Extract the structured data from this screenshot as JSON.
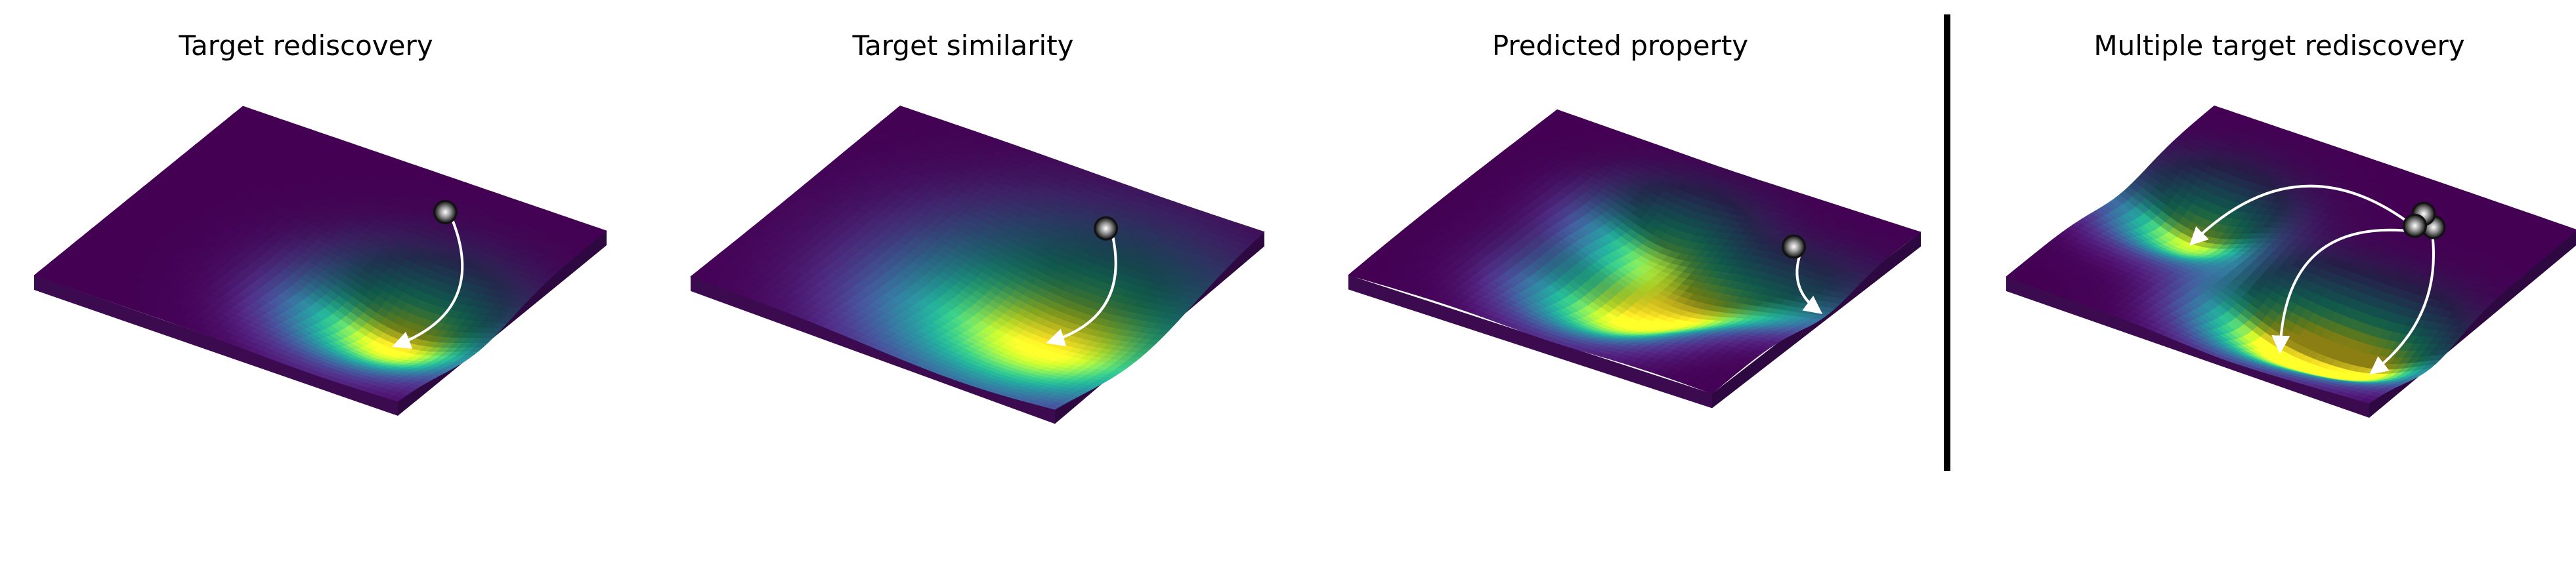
{
  "panels": [
    {
      "title": "Target rediscovery",
      "wells": [
        {
          "u": 0.38,
          "v": 0.78,
          "depth": 1.0,
          "sigma": 0.17
        }
      ],
      "ripple": 0.0,
      "ripple_sign": 1,
      "agents": [
        {
          "u": 0.82,
          "v": 0.66
        }
      ],
      "paths": [
        {
          "from": 0,
          "to_well": 0,
          "bend": -0.5
        }
      ]
    },
    {
      "title": "Target similarity",
      "wells": [
        {
          "u": 0.4,
          "v": 0.76,
          "depth": 1.0,
          "sigma": 0.26
        }
      ],
      "ripple": 0.25,
      "ripple_sign": 1,
      "agents": [
        {
          "u": 0.8,
          "v": 0.68
        }
      ],
      "paths": [
        {
          "from": 0,
          "to_well": 0,
          "bend": -0.45
        }
      ]
    },
    {
      "title": "Predicted property",
      "wells": [
        {
          "u": 0.66,
          "v": 0.48,
          "depth": 0.7,
          "sigma": 0.13
        },
        {
          "u": 0.3,
          "v": 0.55,
          "depth": 0.8,
          "sigma": 0.15
        },
        {
          "u": 0.48,
          "v": 0.7,
          "depth": 0.6,
          "sigma": 0.13
        },
        {
          "u": 0.56,
          "v": 0.92,
          "depth": 0.35,
          "sigma": 0.13
        }
      ],
      "ripple": 0.9,
      "ripple_sign": -1,
      "agents": [
        {
          "u": 0.74,
          "v": 0.8
        }
      ],
      "paths": [
        {
          "from": 0,
          "to_uv": [
            0.56,
            0.97
          ],
          "bend": 0.35
        }
      ]
    },
    {
      "title": "Multiple target rediscovery",
      "wells": [
        {
          "u": 0.55,
          "v": 0.2,
          "depth": 0.9,
          "sigma": 0.13
        },
        {
          "u": 0.27,
          "v": 0.6,
          "depth": 0.95,
          "sigma": 0.14
        },
        {
          "u": 0.3,
          "v": 0.84,
          "depth": 0.85,
          "sigma": 0.13
        }
      ],
      "ripple": 0.3,
      "ripple_sign": 1,
      "agents": [
        {
          "u": 0.78,
          "v": 0.73
        },
        {
          "u": 0.82,
          "v": 0.68
        },
        {
          "u": 0.76,
          "v": 0.69
        }
      ],
      "paths": [
        {
          "from": 2,
          "to_well": 0,
          "bend": 0.45
        },
        {
          "from": 2,
          "to_well": 1,
          "bend": 0.55
        },
        {
          "from": 1,
          "to_well": 2,
          "bend": -0.3
        }
      ]
    }
  ],
  "colors": {
    "viridis": [
      "#440154",
      "#482878",
      "#3e4a89",
      "#31688e",
      "#26828e",
      "#1f9e89",
      "#35b779",
      "#6ece58",
      "#b5de2b",
      "#fde725"
    ],
    "divider": "#000000",
    "arrow": "#ffffff",
    "agent": "#111111"
  }
}
